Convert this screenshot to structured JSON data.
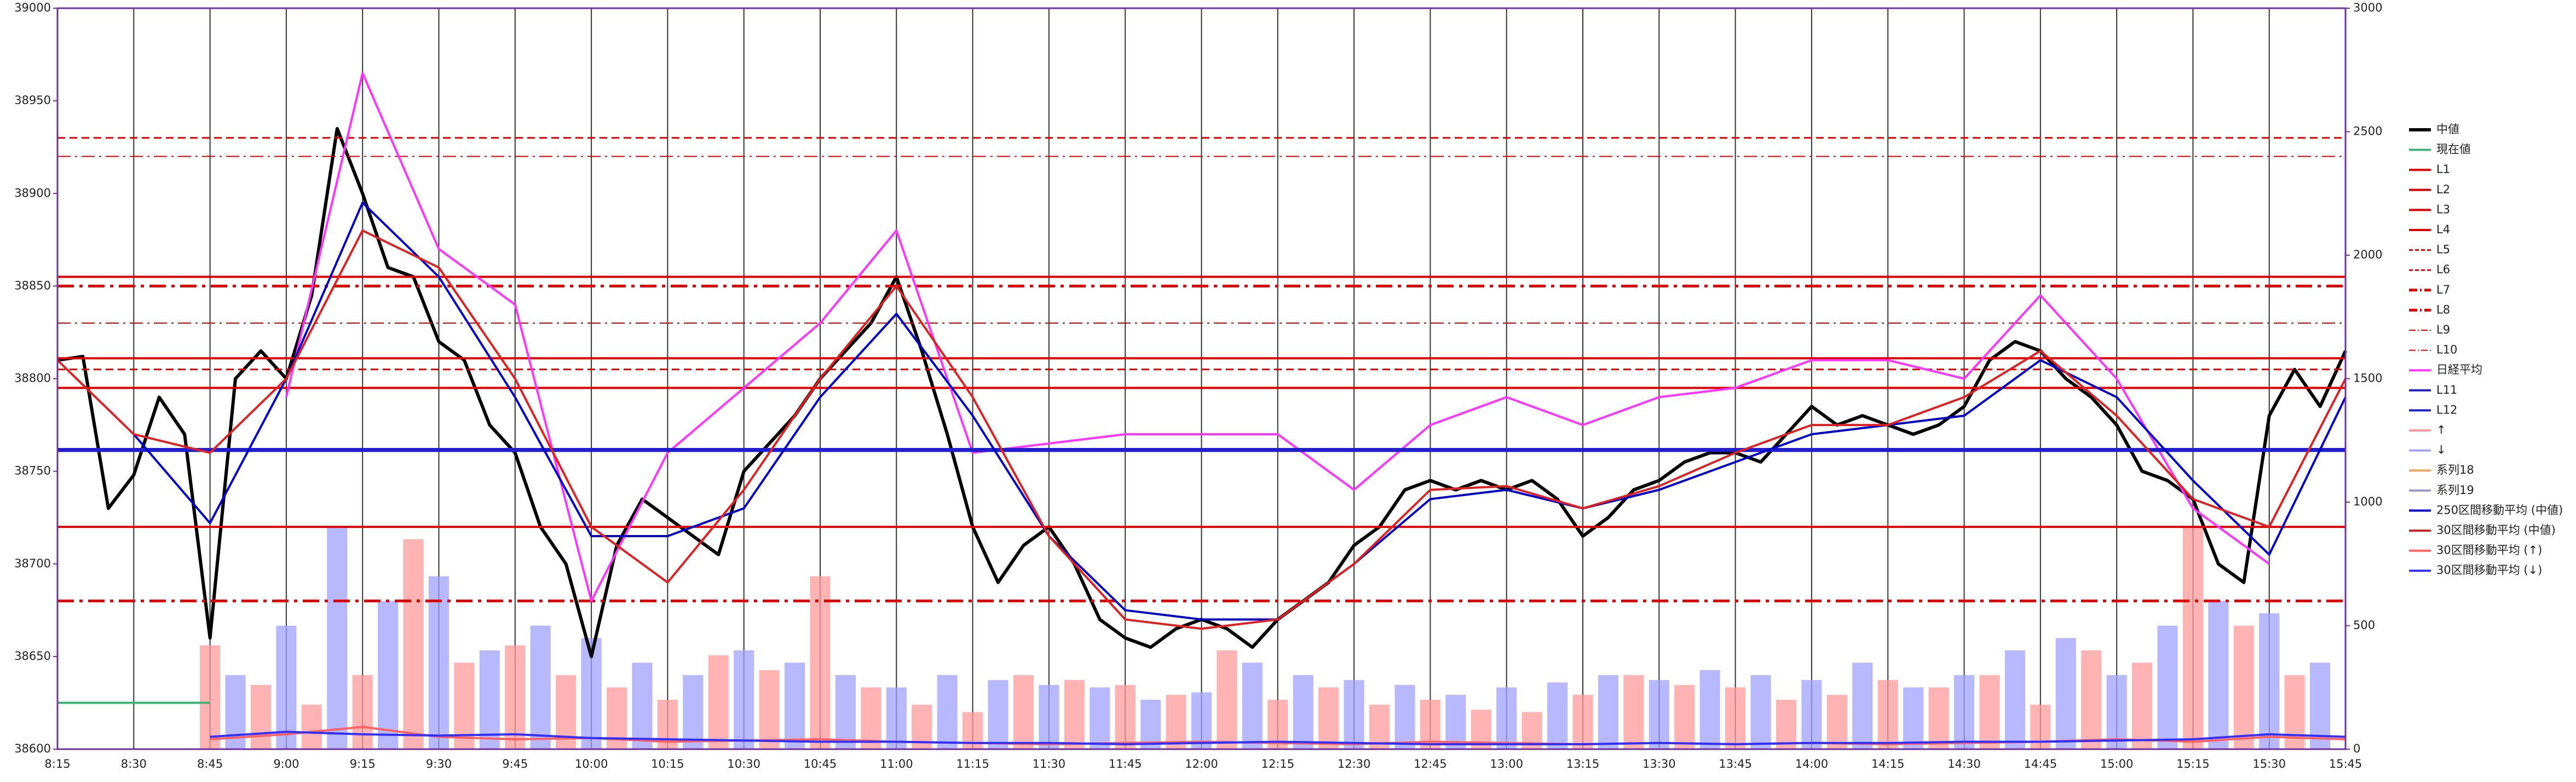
{
  "chart_data": {
    "type": "line",
    "xlim": [
      495,
      945
    ],
    "ylim": [
      38600,
      39000
    ],
    "y2lim": [
      0,
      3000
    ],
    "xticks": [
      {
        "value": 495,
        "label": "8:15"
      },
      {
        "value": 510,
        "label": "8:30"
      },
      {
        "value": 525,
        "label": "8:45"
      },
      {
        "value": 540,
        "label": "9:00"
      },
      {
        "value": 555,
        "label": "9:15"
      },
      {
        "value": 570,
        "label": "9:30"
      },
      {
        "value": 585,
        "label": "9:45"
      },
      {
        "value": 600,
        "label": "10:00"
      },
      {
        "value": 615,
        "label": "10:15"
      },
      {
        "value": 630,
        "label": "10:30"
      },
      {
        "value": 645,
        "label": "10:45"
      },
      {
        "value": 660,
        "label": "11:00"
      },
      {
        "value": 675,
        "label": "11:15"
      },
      {
        "value": 690,
        "label": "11:30"
      },
      {
        "value": 705,
        "label": "11:45"
      },
      {
        "value": 720,
        "label": "12:00"
      },
      {
        "value": 735,
        "label": "12:15"
      },
      {
        "value": 750,
        "label": "12:30"
      },
      {
        "value": 765,
        "label": "12:45"
      },
      {
        "value": 780,
        "label": "13:00"
      },
      {
        "value": 795,
        "label": "13:15"
      },
      {
        "value": 810,
        "label": "13:30"
      },
      {
        "value": 825,
        "label": "13:45"
      },
      {
        "value": 840,
        "label": "14:00"
      },
      {
        "value": 855,
        "label": "14:15"
      },
      {
        "value": 870,
        "label": "14:30"
      },
      {
        "value": 885,
        "label": "14:45"
      },
      {
        "value": 900,
        "label": "15:00"
      },
      {
        "value": 915,
        "label": "15:15"
      },
      {
        "value": 930,
        "label": "15:30"
      },
      {
        "value": 945,
        "label": "15:45"
      }
    ],
    "yticks": [
      38600,
      38650,
      38700,
      38750,
      38800,
      38850,
      38900,
      38950,
      39000
    ],
    "y2ticks": [
      0,
      500,
      1000,
      1500,
      2000,
      2500,
      3000
    ],
    "series": [
      {
        "name": "中値",
        "color": "#000000",
        "kind": "line",
        "style": "thick",
        "x": [
          495,
          500,
          505,
          510,
          515,
          520,
          525,
          530,
          535,
          540,
          545,
          550,
          555,
          560,
          565,
          570,
          575,
          580,
          585,
          590,
          595,
          600,
          605,
          610,
          615,
          620,
          625,
          630,
          635,
          640,
          645,
          650,
          655,
          660,
          665,
          670,
          675,
          680,
          685,
          690,
          695,
          700,
          705,
          710,
          715,
          720,
          725,
          730,
          735,
          740,
          745,
          750,
          755,
          760,
          765,
          770,
          775,
          780,
          785,
          790,
          795,
          800,
          805,
          810,
          815,
          820,
          825,
          830,
          835,
          840,
          845,
          850,
          855,
          860,
          865,
          870,
          875,
          880,
          885,
          890,
          895,
          900,
          905,
          910,
          915,
          920,
          925,
          930,
          935,
          940,
          945
        ],
        "values": [
          38810,
          38812,
          38730,
          38748,
          38790,
          38770,
          38660,
          38800,
          38815,
          38800,
          38845,
          38935,
          38900,
          38860,
          38855,
          38820,
          38810,
          38775,
          38760,
          38720,
          38700,
          38650,
          38710,
          38735,
          38725,
          38715,
          38705,
          38750,
          38765,
          38780,
          38800,
          38815,
          38830,
          38855,
          38815,
          38770,
          38720,
          38690,
          38710,
          38720,
          38700,
          38670,
          38660,
          38655,
          38665,
          38670,
          38665,
          38655,
          38670,
          38680,
          38690,
          38710,
          38720,
          38740,
          38745,
          38740,
          38745,
          38740,
          38745,
          38735,
          38715,
          38725,
          38740,
          38745,
          38755,
          38760,
          38760,
          38755,
          38770,
          38785,
          38775,
          38780,
          38775,
          38770,
          38775,
          38785,
          38810,
          38820,
          38815,
          38800,
          38790,
          38775,
          38750,
          38745,
          38735,
          38700,
          38690,
          38780,
          38805,
          38785,
          38815
        ]
      },
      {
        "name": "現在値",
        "color": "#3cb371",
        "kind": "line",
        "style": "solid",
        "x": [
          495,
          525
        ],
        "values": [
          38625,
          38625
        ]
      },
      {
        "name": "L1",
        "color": "#e00000",
        "kind": "hline",
        "style": "solid",
        "values": [
          38855
        ]
      },
      {
        "name": "L2",
        "color": "#e00000",
        "kind": "hline",
        "style": "solid",
        "values": [
          38811
        ]
      },
      {
        "name": "L3",
        "color": "#e00000",
        "kind": "hline",
        "style": "solid",
        "values": [
          38795
        ]
      },
      {
        "name": "L4",
        "color": "#e00000",
        "kind": "hline",
        "style": "solid",
        "values": [
          38720
        ]
      },
      {
        "name": "L5",
        "color": "#e00000",
        "kind": "hline",
        "style": "dash",
        "values": [
          38930
        ]
      },
      {
        "name": "L6",
        "color": "#e00000",
        "kind": "hline",
        "style": "dash",
        "values": [
          38805
        ]
      },
      {
        "name": "L7",
        "color": "#e00000",
        "kind": "hline",
        "style": "dashdot",
        "values": [
          38850
        ]
      },
      {
        "name": "L8",
        "color": "#e00000",
        "kind": "hline",
        "style": "dashdot",
        "values": [
          38680
        ]
      },
      {
        "name": "L9",
        "color": "#e00000",
        "kind": "hline",
        "style": "dashdot-thin",
        "values": [
          38920
        ]
      },
      {
        "name": "L10",
        "color": "#e00000",
        "kind": "hline",
        "style": "dashdot-thin",
        "values": [
          38830
        ]
      },
      {
        "name": "日経平均",
        "color": "#ff33ff",
        "kind": "line",
        "style": "solid",
        "x": [
          540,
          555,
          570,
          585,
          600,
          615,
          630,
          645,
          660,
          675,
          690,
          705,
          720,
          735,
          750,
          765,
          780,
          795,
          810,
          825,
          840,
          855,
          870,
          885,
          900,
          915,
          930
        ],
        "values": [
          38790,
          38965,
          38870,
          38840,
          38680,
          38760,
          38795,
          38830,
          38880,
          38760,
          38765,
          38770,
          38770,
          38770,
          38740,
          38775,
          38790,
          38775,
          38790,
          38795,
          38810,
          38810,
          38800,
          38845,
          38800,
          38730,
          38700
        ]
      },
      {
        "name": "L11",
        "color": "#1f1fd0",
        "kind": "hline",
        "style": "solid",
        "values": [
          38762
        ]
      },
      {
        "name": "L12",
        "color": "#1f1fd0",
        "kind": "hline",
        "style": "solid",
        "values": [
          38761
        ]
      },
      {
        "name": "↑",
        "color": "#ff9999",
        "kind": "bar",
        "axis": "y2",
        "x": [
          525,
          535,
          545,
          555,
          565,
          575,
          585,
          595,
          605,
          615,
          625,
          635,
          645,
          655,
          665,
          675,
          685,
          695,
          705,
          715,
          725,
          735,
          745,
          755,
          765,
          775,
          785,
          795,
          805,
          815,
          825,
          835,
          845,
          855,
          865,
          875,
          885,
          895,
          905,
          915,
          925,
          935
        ],
        "values": [
          420,
          260,
          180,
          300,
          850,
          350,
          420,
          300,
          250,
          200,
          380,
          320,
          700,
          250,
          180,
          150,
          300,
          280,
          260,
          220,
          400,
          200,
          250,
          180,
          200,
          160,
          150,
          220,
          300,
          260,
          250,
          200,
          220,
          280,
          250,
          300,
          180,
          400,
          350,
          900,
          500,
          300
        ]
      },
      {
        "name": "↓",
        "color": "#a0a0ff",
        "kind": "bar",
        "axis": "y2",
        "x": [
          530,
          540,
          550,
          560,
          570,
          580,
          590,
          600,
          610,
          620,
          630,
          640,
          650,
          660,
          670,
          680,
          690,
          700,
          710,
          720,
          730,
          740,
          750,
          760,
          770,
          780,
          790,
          800,
          810,
          820,
          830,
          840,
          850,
          860,
          870,
          880,
          890,
          900,
          910,
          920,
          930,
          940
        ],
        "values": [
          300,
          500,
          900,
          600,
          700,
          400,
          500,
          450,
          350,
          300,
          400,
          350,
          300,
          250,
          300,
          280,
          260,
          250,
          200,
          230,
          350,
          300,
          280,
          260,
          220,
          250,
          270,
          300,
          280,
          320,
          300,
          280,
          350,
          250,
          300,
          400,
          450,
          300,
          500,
          600,
          550,
          350
        ]
      },
      {
        "name": "系列18",
        "color": "#f4a460",
        "kind": "line",
        "style": "solid"
      },
      {
        "name": "系列19",
        "color": "#9999cc",
        "kind": "line",
        "style": "solid"
      },
      {
        "name": "250区間移動平均 (中値)",
        "color": "#0000cc",
        "kind": "line",
        "style": "solid",
        "x": [
          495,
          510,
          525,
          540,
          555,
          570,
          585,
          600,
          615,
          630,
          645,
          660,
          675,
          690,
          705,
          720,
          735,
          750,
          765,
          780,
          795,
          810,
          825,
          840,
          855,
          870,
          885,
          900,
          915,
          930,
          945
        ],
        "values": [
          null,
          38770,
          38722,
          38800,
          38895,
          38855,
          38790,
          38715,
          38715,
          38730,
          38790,
          38835,
          38780,
          38715,
          38675,
          38670,
          38670,
          38700,
          38735,
          38740,
          38730,
          38740,
          38755,
          38770,
          38775,
          38780,
          38810,
          38790,
          38745,
          38705,
          38790
        ]
      },
      {
        "name": "30区間移動平均 (中値)",
        "color": "#e02020",
        "kind": "line",
        "style": "solid",
        "x": [
          495,
          510,
          525,
          540,
          555,
          570,
          585,
          600,
          615,
          630,
          645,
          660,
          675,
          690,
          705,
          720,
          735,
          750,
          765,
          780,
          795,
          810,
          825,
          840,
          855,
          870,
          885,
          900,
          915,
          930,
          945
        ],
        "values": [
          38810,
          38770,
          38760,
          38800,
          38880,
          38860,
          38800,
          38720,
          38690,
          38740,
          38800,
          38850,
          38790,
          38715,
          38670,
          38665,
          38670,
          38700,
          38740,
          38742,
          38730,
          38742,
          38760,
          38775,
          38775,
          38790,
          38815,
          38780,
          38735,
          38720,
          38800
        ]
      },
      {
        "name": "30区間移動平均 (↑)",
        "color": "#ff6060",
        "kind": "line",
        "style": "solid",
        "axis": "y2",
        "x": [
          525,
          540,
          555,
          570,
          585,
          600,
          615,
          630,
          645,
          660,
          675,
          690,
          705,
          720,
          735,
          750,
          765,
          780,
          795,
          810,
          825,
          840,
          855,
          870,
          885,
          900,
          915,
          930,
          945
        ],
        "values": [
          40,
          60,
          90,
          50,
          40,
          45,
          30,
          35,
          40,
          30,
          25,
          20,
          25,
          30,
          25,
          20,
          30,
          25,
          20,
          25,
          20,
          25,
          20,
          25,
          30,
          40,
          30,
          50,
          40
        ]
      },
      {
        "name": "30区間移動平均 (↓)",
        "color": "#3030ff",
        "kind": "line",
        "style": "solid",
        "axis": "y2",
        "x": [
          525,
          540,
          555,
          570,
          585,
          600,
          615,
          630,
          645,
          660,
          675,
          690,
          705,
          720,
          735,
          750,
          765,
          780,
          795,
          810,
          825,
          840,
          855,
          870,
          885,
          900,
          915,
          930,
          945
        ],
        "values": [
          50,
          70,
          60,
          55,
          60,
          45,
          40,
          35,
          30,
          30,
          25,
          25,
          20,
          25,
          30,
          25,
          20,
          20,
          20,
          25,
          20,
          25,
          25,
          30,
          30,
          35,
          40,
          60,
          50
        ]
      }
    ]
  }
}
